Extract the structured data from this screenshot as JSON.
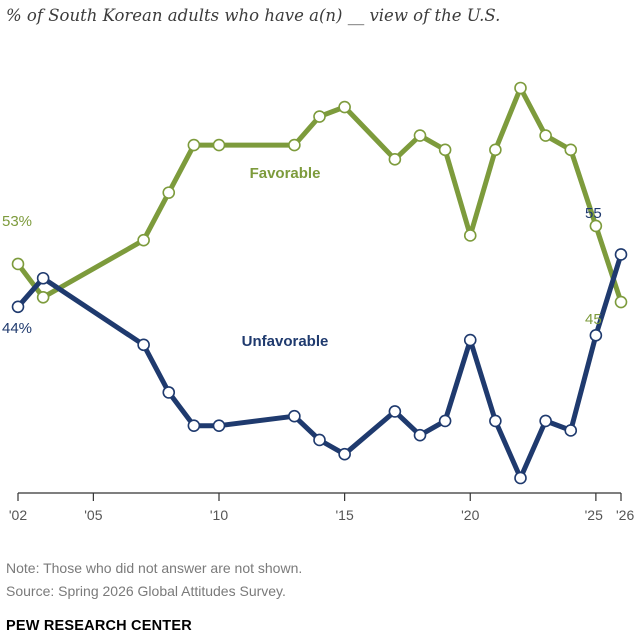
{
  "header": {
    "title": "% of South Korean adults who have a(n) __ view of the U.S."
  },
  "footer": {
    "note": "Note: Those who did not answer are not shown.",
    "source": "Source: Spring 2026 Global Attitudes Survey.",
    "brand": "PEW RESEARCH CENTER"
  },
  "chart_data": {
    "type": "line",
    "title": "% of South Korean adults who have a(n) __ view of the U.S.",
    "xlabel": "",
    "ylabel": "",
    "xlim": [
      2002,
      2026
    ],
    "ylim": [
      0,
      100
    ],
    "grid": false,
    "legend": "inline labels",
    "x_ticks": [
      {
        "value": 2002,
        "label": "'02"
      },
      {
        "value": 2005,
        "label": "'05"
      },
      {
        "value": 2010,
        "label": "'10"
      },
      {
        "value": 2015,
        "label": "'15"
      },
      {
        "value": 2020,
        "label": "'20"
      },
      {
        "value": 2025,
        "label": "'25"
      },
      {
        "value": 2026,
        "label": "'26"
      }
    ],
    "series": [
      {
        "name": "Favorable",
        "color": "#7d9b3c",
        "x": [
          2002,
          2003,
          2007,
          2008,
          2009,
          2010,
          2013,
          2014,
          2015,
          2017,
          2018,
          2019,
          2020,
          2021,
          2022,
          2023,
          2024,
          2025,
          2026
        ],
        "values": [
          53,
          46,
          58,
          68,
          78,
          78,
          78,
          84,
          86,
          75,
          80,
          77,
          59,
          77,
          90,
          80,
          77,
          61,
          45
        ],
        "start_label": "53%",
        "end_label": "45"
      },
      {
        "name": "Unfavorable",
        "color": "#1f3a6e",
        "x": [
          2002,
          2003,
          2007,
          2008,
          2009,
          2010,
          2013,
          2014,
          2015,
          2017,
          2018,
          2019,
          2020,
          2021,
          2022,
          2023,
          2024,
          2025,
          2026
        ],
        "values": [
          44,
          50,
          36,
          26,
          19,
          19,
          21,
          16,
          13,
          22,
          17,
          20,
          37,
          20,
          8,
          20,
          18,
          38,
          55
        ],
        "start_label": "44%",
        "end_label": "55"
      }
    ]
  }
}
